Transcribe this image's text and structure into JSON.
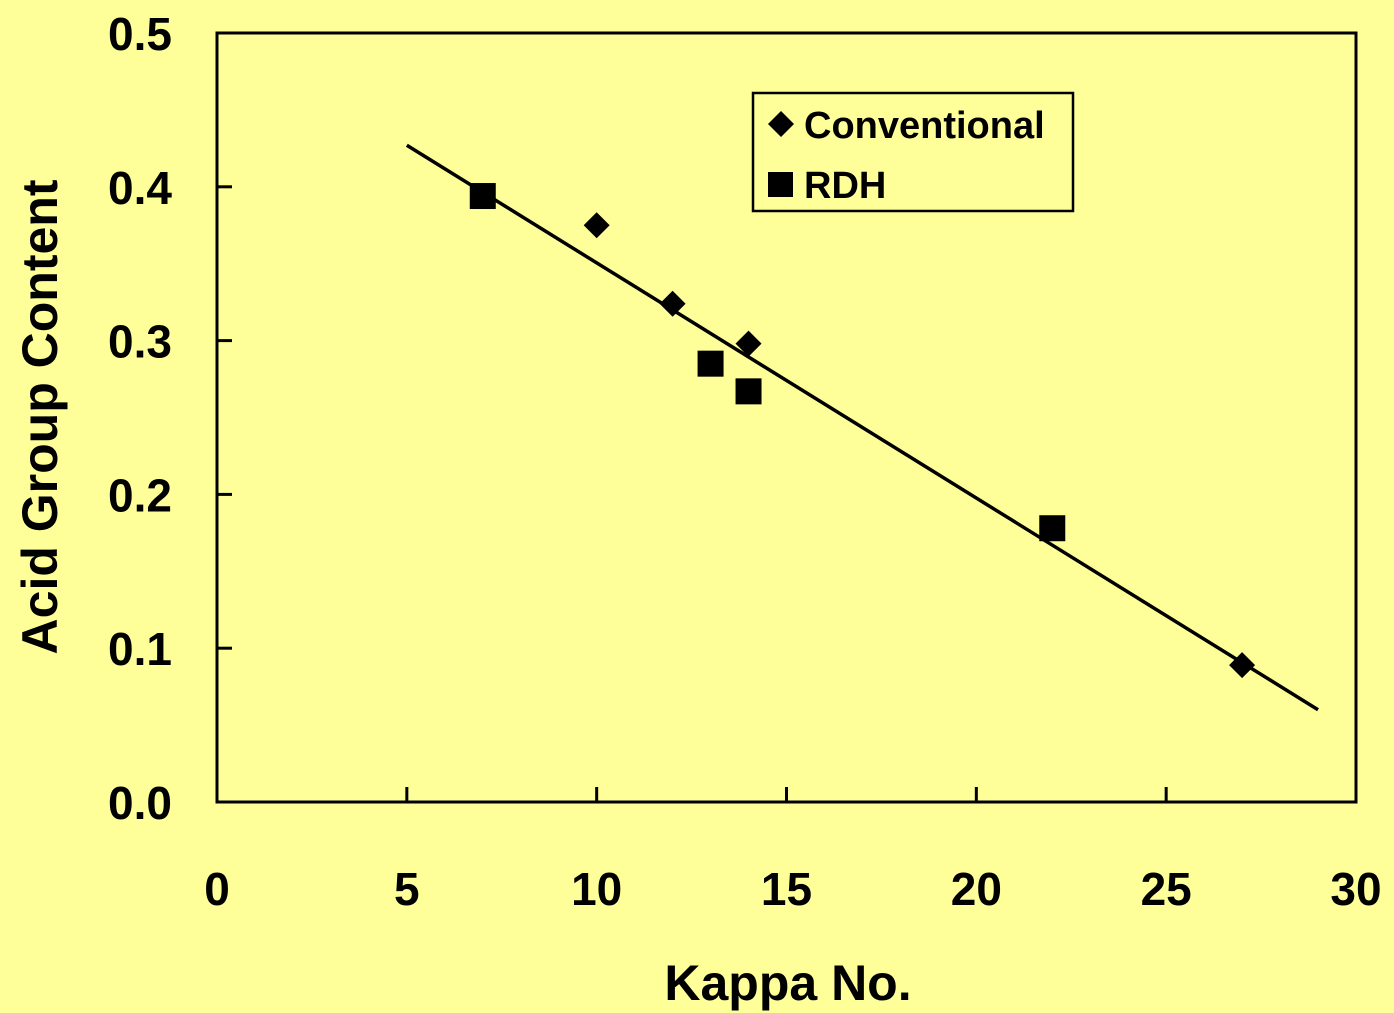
{
  "chart_data": {
    "type": "scatter",
    "xlabel": "Kappa No.",
    "ylabel": "Acid Group Content",
    "xlim": [
      0,
      30
    ],
    "ylim": [
      0.0,
      0.5
    ],
    "x_ticks": [
      "0",
      "5",
      "10",
      "15",
      "20",
      "25",
      "30"
    ],
    "y_ticks": [
      "0.0",
      "0.1",
      "0.2",
      "0.3",
      "0.4",
      "0.5"
    ],
    "grid": false,
    "legend_position": "top-right",
    "series": [
      {
        "name": "Conventional",
        "marker": "diamond",
        "color": "#000000",
        "points": [
          {
            "x": 10,
            "y": 0.375
          },
          {
            "x": 12,
            "y": 0.324
          },
          {
            "x": 14,
            "y": 0.298
          },
          {
            "x": 27,
            "y": 0.089
          }
        ]
      },
      {
        "name": "RDH",
        "marker": "square",
        "color": "#000000",
        "points": [
          {
            "x": 7,
            "y": 0.394
          },
          {
            "x": 13,
            "y": 0.285
          },
          {
            "x": 14,
            "y": 0.267
          },
          {
            "x": 22,
            "y": 0.178
          }
        ]
      }
    ],
    "trendline": {
      "x_start": 5,
      "y_start": 0.427,
      "x_end": 29,
      "y_end": 0.06
    }
  },
  "colors": {
    "background": "#FFFF99",
    "plot_area": "#FFFF99",
    "ink": "#000000"
  }
}
